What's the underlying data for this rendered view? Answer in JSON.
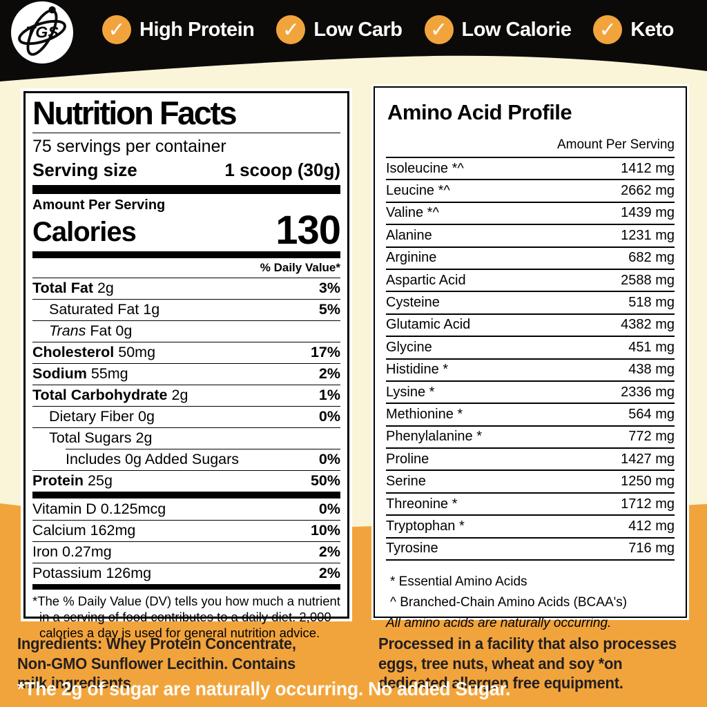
{
  "colors": {
    "black_band": "#0C0A09",
    "cream": "#FAF5D8",
    "orange": "#F2A43C",
    "panel_white": "#FFFFFF",
    "text_black": "#000000",
    "footer_text_dark": "#231F20",
    "footer_text_white": "#FCFCF4"
  },
  "icons": {
    "check": "✓"
  },
  "header": {
    "logo_text": "TGS",
    "badges": [
      {
        "label": "High Protein"
      },
      {
        "label": "Low Carb"
      },
      {
        "label": "Low Calorie"
      },
      {
        "label": "Keto"
      }
    ]
  },
  "nutrition_panel": {
    "title": "Nutrition Facts",
    "servings_per_container": "75 servings per container",
    "serving_size_label": "Serving size",
    "serving_size_value": "1 scoop (30g)",
    "amount_per_serving": "Amount Per Serving",
    "calories_label": "Calories",
    "calories_value": "130",
    "daily_value_header": "% Daily Value*",
    "rows": [
      {
        "name": "Total Fat",
        "amount": "2g",
        "dv": "3%",
        "bold": true,
        "indent": 0,
        "rule": "full"
      },
      {
        "name": "Saturated Fat",
        "amount": "1g",
        "dv": "5%",
        "bold": false,
        "indent": 1,
        "rule": "full"
      },
      {
        "name": "Trans",
        "amount": "Fat 0g",
        "dv": "",
        "bold": false,
        "indent": 1,
        "italic": true,
        "rule": "full"
      },
      {
        "name": "Cholesterol",
        "amount": "50mg",
        "dv": "17%",
        "bold": true,
        "indent": 0,
        "rule": "full"
      },
      {
        "name": "Sodium",
        "amount": "55mg",
        "dv": "2%",
        "bold": true,
        "indent": 0,
        "rule": "full"
      },
      {
        "name": "Total Carbohydrate",
        "amount": "2g",
        "dv": "1%",
        "bold": true,
        "indent": 0,
        "rule": "full"
      },
      {
        "name": "Dietary Fiber",
        "amount": "0g",
        "dv": "0%",
        "bold": false,
        "indent": 1,
        "rule": "full"
      },
      {
        "name": "Total Sugars",
        "amount": "2g",
        "dv": "",
        "bold": false,
        "indent": 1,
        "rule": "full"
      },
      {
        "name": "Includes 0g Added Sugars",
        "amount": "",
        "dv": "0%",
        "bold": false,
        "indent": 2,
        "rule": "inset"
      },
      {
        "name": "Protein",
        "amount": "25g",
        "dv": "50%",
        "bold": true,
        "indent": 0,
        "rule": "full"
      }
    ],
    "vitamin_rows": [
      {
        "name": "Vitamin D",
        "amount": "0.125mcg",
        "dv": "0%",
        "bold": false,
        "indent": 0,
        "rule": "none"
      },
      {
        "name": "Calcium",
        "amount": "162mg",
        "dv": "10%",
        "bold": false,
        "indent": 0,
        "rule": "full"
      },
      {
        "name": "Iron",
        "amount": "0.27mg",
        "dv": "2%",
        "bold": false,
        "indent": 0,
        "rule": "full"
      },
      {
        "name": "Potassium",
        "amount": "126mg",
        "dv": "2%",
        "bold": false,
        "indent": 0,
        "rule": "full"
      }
    ],
    "footnote": "*The % Daily Value (DV) tells you how much a nutrient in a serving of food contributes to a daily diet. 2,000 calories a day is used for general nutrition advice."
  },
  "amino_panel": {
    "title": "Amino Acid Profile",
    "column_header": "Amount Per Serving",
    "rows": [
      {
        "name": "Isoleucine *^",
        "value": "1412 mg"
      },
      {
        "name": "Leucine *^",
        "value": "2662 mg"
      },
      {
        "name": "Valine *^",
        "value": "1439 mg"
      },
      {
        "name": "Alanine",
        "value": "1231 mg"
      },
      {
        "name": "Arginine",
        "value": "682 mg"
      },
      {
        "name": "Aspartic Acid",
        "value": "2588 mg"
      },
      {
        "name": "Cysteine",
        "value": "518 mg"
      },
      {
        "name": "Glutamic Acid",
        "value": "4382 mg"
      },
      {
        "name": "Glycine",
        "value": "451 mg"
      },
      {
        "name": "Histidine *",
        "value": "438 mg"
      },
      {
        "name": "Lysine *",
        "value": "2336 mg"
      },
      {
        "name": "Methionine *",
        "value": "564 mg"
      },
      {
        "name": "Phenylalanine *",
        "value": "772 mg"
      },
      {
        "name": "Proline",
        "value": "1427 mg"
      },
      {
        "name": "Serine",
        "value": "1250 mg"
      },
      {
        "name": "Threonine *",
        "value": "1712 mg"
      },
      {
        "name": "Tryptophan *",
        "value": "412 mg"
      },
      {
        "name": "Tyrosine",
        "value": "716 mg"
      }
    ],
    "footnotes": [
      "* Essential Amino Acids",
      "^ Branched-Chain Amino Acids (BCAA's)",
      "All amino acids are naturally occurring."
    ]
  },
  "footer": {
    "ingredients": "Ingredients: Whey Protein Concentrate, Non-GMO Sunflower Lecithin. Contains milk ingredients.",
    "allergen": "Processed in a facility that also processes eggs, tree nuts, wheat and soy *on dedicated allergen free equipment.",
    "sugar_note": "*The 2g of sugar are naturally occurring. No added Sugar."
  }
}
